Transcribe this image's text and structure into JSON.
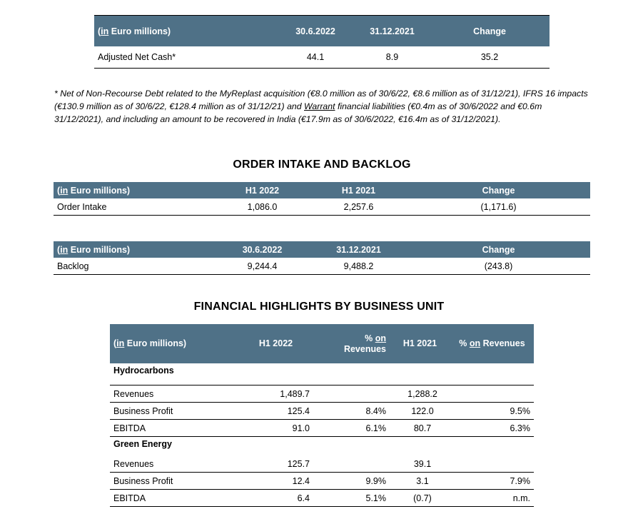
{
  "net_cash": {
    "headers": {
      "label_prefix": "in",
      "label_rest": " Euro millions)",
      "c1": "30.6.2022",
      "c2": "31.12.2021",
      "c3": "Change"
    },
    "row": {
      "label": "Adjusted Net Cash*",
      "c1": "44.1",
      "c2": "8.9",
      "c3": "35.2"
    }
  },
  "footnote": {
    "part1": "* Net of Non-Recourse Debt related to the MyReplast acquisition (€8.0 million as of 30/6/22, €8.6 million as of 31/12/21), IFRS 16 impacts (€130.9 million as of 30/6/22, €128.4 million as of 31/12/21) and ",
    "underlined": "Warrant",
    "part2": " financial liabilities (€0.4m as of 30/6/2022 and €0.6m 31/12/2021), and including an amount to be recovered in India (€17.9m as of 30/6/2022, €16.4m as of 31/12/2021)."
  },
  "order_section_title": "ORDER INTAKE AND BACKLOG",
  "order_intake": {
    "headers": {
      "c1": "H1 2022",
      "c2": "H1 2021",
      "c3": "Change"
    },
    "row": {
      "label": "Order Intake",
      "c1": "1,086.0",
      "c2": "2,257.6",
      "c3": "(1,171.6)"
    }
  },
  "backlog": {
    "headers": {
      "c1": "30.6.2022",
      "c2": "31.12.2021",
      "c3": "Change"
    },
    "row": {
      "label": "Backlog",
      "c1": "9,244.4",
      "c2": "9,488.2",
      "c3": "(243.8)"
    }
  },
  "common": {
    "open_paren": "(",
    "in": "in",
    "euro": " Euro millions)"
  },
  "fin_section_title": "FINANCIAL HIGHLIGHTS BY BUSINESS UNIT",
  "business_units": {
    "headers": {
      "c1": "H1 2022",
      "c2_pre": "% ",
      "c2_on": "on",
      "c2_post": "Revenues",
      "c3": "H1 2021",
      "c4_pre": "% ",
      "c4_on": "on",
      "c4_post": " Revenues"
    },
    "units": [
      {
        "name": "Hydrocarbons",
        "rows": [
          {
            "label": "Revenues",
            "c1": "1,489.7",
            "c2": "",
            "c3": "1,288.2",
            "c4": ""
          },
          {
            "label": "Business Profit",
            "c1": "125.4",
            "c2": "8.4%",
            "c3": "122.0",
            "c4": "9.5%"
          },
          {
            "label": "EBITDA",
            "c1": "91.0",
            "c2": "6.1%",
            "c3": "80.7",
            "c4": "6.3%"
          }
        ]
      },
      {
        "name": "Green Energy",
        "rows": [
          {
            "label": "Revenues",
            "c1": "125.7",
            "c2": "",
            "c3": "39.1",
            "c4": ""
          },
          {
            "label": "Business Profit",
            "c1": "12.4",
            "c2": "9.9%",
            "c3": "3.1",
            "c4": "7.9%"
          },
          {
            "label": "EBITDA",
            "c1": "6.4",
            "c2": "5.1%",
            "c3": "(0.7)",
            "c4": "n.m."
          }
        ]
      }
    ]
  }
}
